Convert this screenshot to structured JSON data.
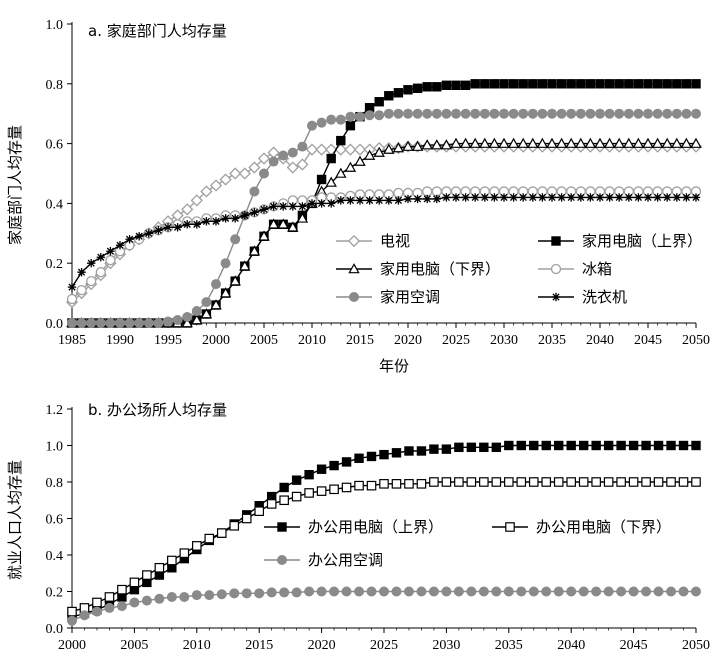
{
  "chart_data": [
    {
      "type": "line",
      "title": "a. 家庭部门人均存量",
      "xlabel": "年份",
      "ylabel": "家庭部门人均存量",
      "xlim": [
        1985,
        2050
      ],
      "ylim": [
        0,
        1.0
      ],
      "xticks": [
        "1985",
        "1990",
        "1995",
        "2000",
        "2005",
        "2010",
        "2015",
        "2020",
        "2025",
        "2030",
        "2035",
        "2040",
        "2045",
        "2050"
      ],
      "yticks": [
        "0.0",
        "0.2",
        "0.4",
        "0.6",
        "0.8",
        "1.0"
      ],
      "grid": false,
      "legend_position": "center-right",
      "x": [
        1985,
        1986,
        1987,
        1988,
        1989,
        1990,
        1991,
        1992,
        1993,
        1994,
        1995,
        1996,
        1997,
        1998,
        1999,
        2000,
        2001,
        2002,
        2003,
        2004,
        2005,
        2006,
        2007,
        2008,
        2009,
        2010,
        2011,
        2012,
        2013,
        2014,
        2015,
        2016,
        2017,
        2018,
        2019,
        2020,
        2021,
        2022,
        2023,
        2024,
        2025,
        2026,
        2027,
        2028,
        2029,
        2030,
        2031,
        2032,
        2033,
        2034,
        2035,
        2036,
        2037,
        2038,
        2039,
        2040,
        2041,
        2042,
        2043,
        2044,
        2045,
        2046,
        2047,
        2048,
        2049,
        2050
      ],
      "series": [
        {
          "name": "电视",
          "color": "#a0a0a0",
          "marker": "diamond-open",
          "values": [
            0.07,
            0.1,
            0.13,
            0.16,
            0.2,
            0.23,
            0.26,
            0.28,
            0.3,
            0.32,
            0.34,
            0.36,
            0.38,
            0.41,
            0.44,
            0.46,
            0.48,
            0.5,
            0.5,
            0.52,
            0.55,
            0.57,
            0.55,
            0.52,
            0.53,
            0.58,
            0.58,
            0.58,
            0.58,
            0.58,
            0.58,
            0.58,
            0.585,
            0.585,
            0.585,
            0.59,
            0.59,
            0.59,
            0.59,
            0.59,
            0.59,
            0.59,
            0.59,
            0.59,
            0.59,
            0.59,
            0.59,
            0.59,
            0.59,
            0.59,
            0.59,
            0.59,
            0.59,
            0.59,
            0.59,
            0.59,
            0.59,
            0.59,
            0.59,
            0.59,
            0.59,
            0.59,
            0.59,
            0.59,
            0.59,
            0.59
          ]
        },
        {
          "name": "家用电脑（上界）",
          "color": "#000000",
          "marker": "square-filled",
          "values": [
            0,
            0,
            0,
            0,
            0,
            0,
            0,
            0,
            0,
            0,
            0,
            0,
            0,
            0.01,
            0.03,
            0.06,
            0.1,
            0.14,
            0.19,
            0.24,
            0.29,
            0.33,
            0.33,
            0.32,
            0.36,
            0.4,
            0.48,
            0.55,
            0.61,
            0.66,
            0.69,
            0.72,
            0.74,
            0.76,
            0.77,
            0.78,
            0.785,
            0.79,
            0.79,
            0.795,
            0.795,
            0.795,
            0.8,
            0.8,
            0.8,
            0.8,
            0.8,
            0.8,
            0.8,
            0.8,
            0.8,
            0.8,
            0.8,
            0.8,
            0.8,
            0.8,
            0.8,
            0.8,
            0.8,
            0.8,
            0.8,
            0.8,
            0.8,
            0.8,
            0.8,
            0.8
          ]
        },
        {
          "name": "家用电脑（下界）",
          "color": "#000000",
          "marker": "triangle-open",
          "values": [
            0,
            0,
            0,
            0,
            0,
            0,
            0,
            0,
            0,
            0,
            0,
            0,
            0,
            0.01,
            0.03,
            0.06,
            0.1,
            0.14,
            0.19,
            0.24,
            0.29,
            0.33,
            0.33,
            0.32,
            0.35,
            0.4,
            0.44,
            0.47,
            0.5,
            0.52,
            0.54,
            0.56,
            0.57,
            0.58,
            0.585,
            0.59,
            0.59,
            0.595,
            0.595,
            0.595,
            0.6,
            0.6,
            0.6,
            0.6,
            0.6,
            0.6,
            0.6,
            0.6,
            0.6,
            0.6,
            0.6,
            0.6,
            0.6,
            0.6,
            0.6,
            0.6,
            0.6,
            0.6,
            0.6,
            0.6,
            0.6,
            0.6,
            0.6,
            0.6,
            0.6,
            0.6
          ]
        },
        {
          "name": "冰箱",
          "color": "#a0a0a0",
          "marker": "circle-open",
          "values": [
            0.08,
            0.11,
            0.14,
            0.17,
            0.21,
            0.24,
            0.26,
            0.28,
            0.3,
            0.31,
            0.32,
            0.33,
            0.34,
            0.34,
            0.35,
            0.35,
            0.36,
            0.36,
            0.36,
            0.37,
            0.38,
            0.39,
            0.4,
            0.41,
            0.41,
            0.41,
            0.42,
            0.42,
            0.42,
            0.425,
            0.43,
            0.43,
            0.43,
            0.43,
            0.435,
            0.435,
            0.435,
            0.44,
            0.44,
            0.44,
            0.44,
            0.44,
            0.44,
            0.44,
            0.44,
            0.44,
            0.44,
            0.44,
            0.44,
            0.44,
            0.44,
            0.44,
            0.44,
            0.44,
            0.44,
            0.44,
            0.44,
            0.44,
            0.44,
            0.44,
            0.44,
            0.44,
            0.44,
            0.44,
            0.44,
            0.44
          ]
        },
        {
          "name": "家用空调",
          "color": "#8a8a8a",
          "marker": "circle-filled",
          "values": [
            0,
            0,
            0,
            0,
            0,
            0,
            0,
            0,
            0,
            0,
            0.005,
            0.01,
            0.02,
            0.04,
            0.07,
            0.13,
            0.2,
            0.28,
            0.36,
            0.44,
            0.5,
            0.54,
            0.56,
            0.57,
            0.59,
            0.66,
            0.67,
            0.68,
            0.68,
            0.69,
            0.69,
            0.695,
            0.695,
            0.7,
            0.7,
            0.7,
            0.7,
            0.7,
            0.7,
            0.7,
            0.7,
            0.7,
            0.7,
            0.7,
            0.7,
            0.7,
            0.7,
            0.7,
            0.7,
            0.7,
            0.7,
            0.7,
            0.7,
            0.7,
            0.7,
            0.7,
            0.7,
            0.7,
            0.7,
            0.7,
            0.7,
            0.7,
            0.7,
            0.7,
            0.7,
            0.7
          ]
        },
        {
          "name": "洗衣机",
          "color": "#000000",
          "marker": "star",
          "values": [
            0.12,
            0.17,
            0.2,
            0.22,
            0.24,
            0.26,
            0.28,
            0.29,
            0.3,
            0.31,
            0.32,
            0.32,
            0.33,
            0.33,
            0.34,
            0.34,
            0.35,
            0.35,
            0.36,
            0.37,
            0.38,
            0.39,
            0.39,
            0.39,
            0.39,
            0.4,
            0.4,
            0.4,
            0.41,
            0.41,
            0.41,
            0.41,
            0.41,
            0.41,
            0.41,
            0.415,
            0.415,
            0.415,
            0.415,
            0.42,
            0.42,
            0.42,
            0.42,
            0.42,
            0.42,
            0.42,
            0.42,
            0.42,
            0.42,
            0.42,
            0.42,
            0.42,
            0.42,
            0.42,
            0.42,
            0.42,
            0.42,
            0.42,
            0.42,
            0.42,
            0.42,
            0.42,
            0.42,
            0.42,
            0.42,
            0.42
          ]
        }
      ]
    },
    {
      "type": "line",
      "title": "b. 办公场所人均存量",
      "xlabel": "",
      "ylabel": "就业人口人均存量",
      "xlim": [
        2000,
        2050
      ],
      "ylim": [
        0,
        1.2
      ],
      "xticks": [
        "2000",
        "2005",
        "2010",
        "2015",
        "2020",
        "2025",
        "2030",
        "2035",
        "2040",
        "2045",
        "2050"
      ],
      "yticks": [
        "0.0",
        "0.2",
        "0.4",
        "0.6",
        "0.8",
        "1.0",
        "1.2"
      ],
      "grid": false,
      "legend_position": "center",
      "x": [
        2000,
        2001,
        2002,
        2003,
        2004,
        2005,
        2006,
        2007,
        2008,
        2009,
        2010,
        2011,
        2012,
        2013,
        2014,
        2015,
        2016,
        2017,
        2018,
        2019,
        2020,
        2021,
        2022,
        2023,
        2024,
        2025,
        2026,
        2027,
        2028,
        2029,
        2030,
        2031,
        2032,
        2033,
        2034,
        2035,
        2036,
        2037,
        2038,
        2039,
        2040,
        2041,
        2042,
        2043,
        2044,
        2045,
        2046,
        2047,
        2048,
        2049,
        2050
      ],
      "series": [
        {
          "name": "办公用电脑（上界）",
          "color": "#000000",
          "marker": "square-filled",
          "values": [
            0.06,
            0.08,
            0.1,
            0.13,
            0.17,
            0.21,
            0.25,
            0.29,
            0.33,
            0.38,
            0.43,
            0.48,
            0.52,
            0.57,
            0.62,
            0.67,
            0.72,
            0.77,
            0.81,
            0.84,
            0.87,
            0.89,
            0.91,
            0.93,
            0.94,
            0.95,
            0.96,
            0.97,
            0.97,
            0.98,
            0.98,
            0.99,
            0.99,
            0.99,
            0.99,
            1.0,
            1.0,
            1.0,
            1.0,
            1.0,
            1.0,
            1.0,
            1.0,
            1.0,
            1.0,
            1.0,
            1.0,
            1.0,
            1.0,
            1.0,
            1.0
          ]
        },
        {
          "name": "办公用电脑（下界）",
          "color": "#000000",
          "marker": "square-open",
          "values": [
            0.09,
            0.11,
            0.14,
            0.17,
            0.21,
            0.25,
            0.29,
            0.33,
            0.37,
            0.41,
            0.45,
            0.49,
            0.52,
            0.56,
            0.6,
            0.64,
            0.68,
            0.7,
            0.72,
            0.74,
            0.75,
            0.76,
            0.77,
            0.78,
            0.78,
            0.79,
            0.79,
            0.79,
            0.79,
            0.8,
            0.8,
            0.8,
            0.8,
            0.8,
            0.8,
            0.8,
            0.8,
            0.8,
            0.8,
            0.8,
            0.8,
            0.8,
            0.8,
            0.8,
            0.8,
            0.8,
            0.8,
            0.8,
            0.8,
            0.8,
            0.8
          ]
        },
        {
          "name": "办公用空调",
          "color": "#8a8a8a",
          "marker": "circle-filled",
          "values": [
            0.04,
            0.07,
            0.09,
            0.11,
            0.12,
            0.14,
            0.15,
            0.16,
            0.17,
            0.17,
            0.18,
            0.18,
            0.185,
            0.19,
            0.19,
            0.19,
            0.195,
            0.195,
            0.195,
            0.2,
            0.2,
            0.2,
            0.2,
            0.2,
            0.2,
            0.2,
            0.2,
            0.2,
            0.2,
            0.2,
            0.2,
            0.2,
            0.2,
            0.2,
            0.2,
            0.2,
            0.2,
            0.2,
            0.2,
            0.2,
            0.2,
            0.2,
            0.2,
            0.2,
            0.2,
            0.2,
            0.2,
            0.2,
            0.2,
            0.2,
            0.2
          ]
        }
      ]
    }
  ]
}
